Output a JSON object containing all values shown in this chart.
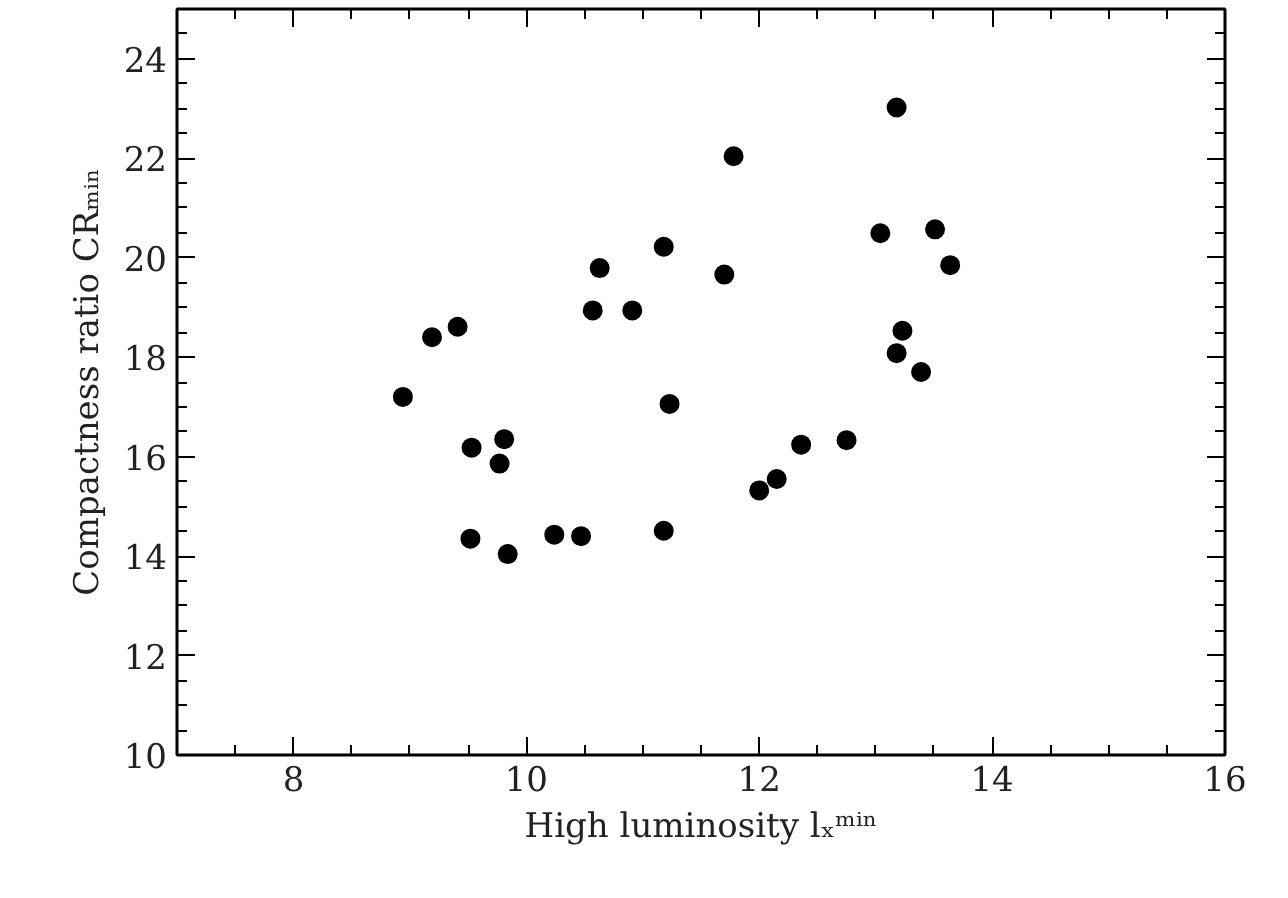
{
  "chart_data": {
    "type": "scatter",
    "xlabel": "High luminosity lₓᵐⁱⁿ",
    "ylabel": "Compactness ratio CRₘᵢₙ",
    "marker": "circle",
    "grid": false,
    "xlim": [
      7,
      16
    ],
    "ylim": [
      10,
      25
    ],
    "xticks": [
      {
        "value": 7.5,
        "label": null
      },
      8,
      {
        "value": 8.5,
        "label": null
      },
      {
        "value": 9,
        "label": null
      },
      {
        "value": 9.5,
        "label": null
      },
      10,
      {
        "value": 10.5,
        "label": null
      },
      {
        "value": 11,
        "label": null
      },
      {
        "value": 11.5,
        "label": null
      },
      12,
      {
        "value": 12.5,
        "label": null
      },
      {
        "value": 13,
        "label": null
      },
      {
        "value": 13.5,
        "label": null
      },
      14,
      {
        "value": 14.5,
        "label": null
      },
      {
        "value": 15,
        "label": null
      },
      {
        "value": 15.5,
        "label": null
      },
      16
    ],
    "yticks": [
      10,
      {
        "value": 10.5,
        "label": null
      },
      {
        "value": 11,
        "label": null
      },
      {
        "value": 11.5,
        "label": null
      },
      12,
      {
        "value": 12.5,
        "label": null
      },
      {
        "value": 13,
        "label": null
      },
      {
        "value": 13.5,
        "label": null
      },
      14,
      {
        "value": 14.5,
        "label": null
      },
      {
        "value": 15,
        "label": null
      },
      {
        "value": 15.5,
        "label": null
      },
      16,
      {
        "value": 16.5,
        "label": null
      },
      {
        "value": 17,
        "label": null
      },
      {
        "value": 17.5,
        "label": null
      },
      18,
      {
        "value": 18.5,
        "label": null
      },
      {
        "value": 19,
        "label": null
      },
      {
        "value": 19.5,
        "label": null
      },
      20,
      {
        "value": 20.5,
        "label": null
      },
      {
        "value": 21,
        "label": null
      },
      {
        "value": 21.5,
        "label": null
      },
      22,
      {
        "value": 22.5,
        "label": null
      },
      {
        "value": 23,
        "label": null
      },
      {
        "value": 23.5,
        "label": null
      },
      24,
      {
        "value": 24.5,
        "label": null
      }
    ],
    "series": [
      {
        "color": "#000000",
        "x": [
          11.78,
          11.18,
          10.63,
          11.7,
          10.57,
          10.91,
          9.19,
          9.41,
          8.94,
          11.23,
          9.53,
          9.81,
          9.77,
          9.52,
          9.84,
          10.24,
          10.47,
          11.18,
          12.0,
          12.15,
          12.36,
          12.75,
          13.18,
          13.04,
          13.51,
          13.64,
          13.23,
          13.18,
          13.39
        ],
        "values": [
          22.04,
          20.22,
          19.79,
          19.66,
          18.94,
          18.94,
          18.4,
          18.61,
          17.2,
          17.06,
          16.18,
          16.35,
          15.86,
          14.35,
          14.04,
          14.43,
          14.4,
          14.51,
          15.32,
          15.55,
          16.24,
          16.33,
          23.02,
          20.49,
          20.57,
          19.85,
          18.53,
          18.08,
          17.7
        ]
      }
    ]
  }
}
